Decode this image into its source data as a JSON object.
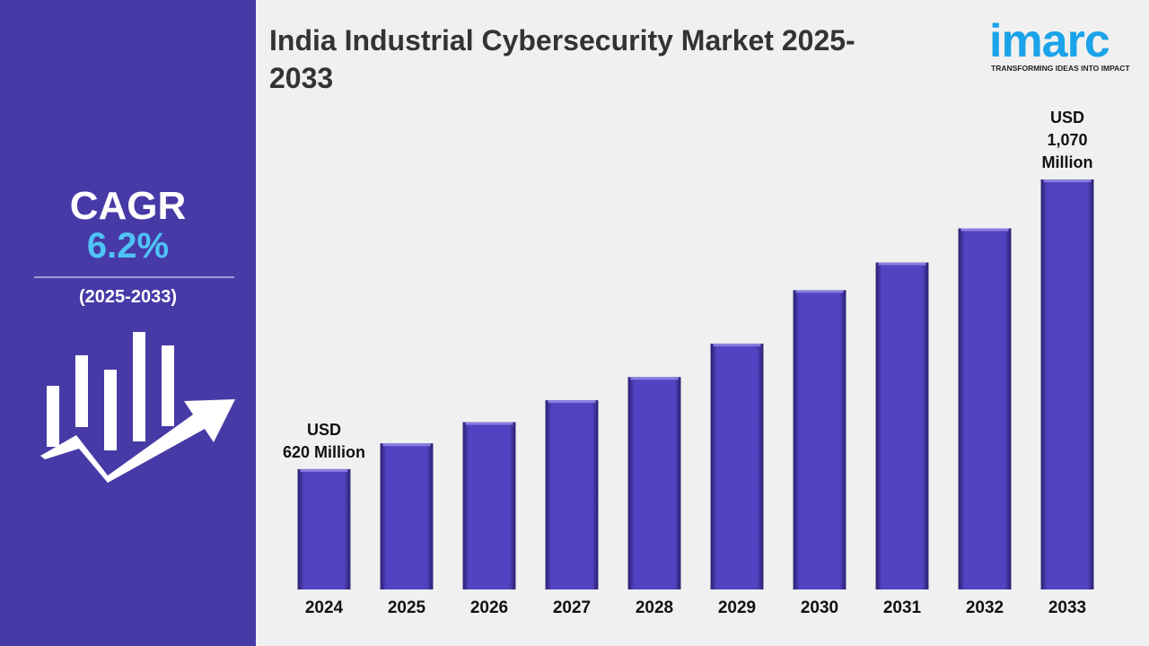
{
  "header": {
    "title": "India Industrial Cybersecurity Market 2025-2033",
    "logo": "imarc",
    "tagline": "TRANSFORMING IDEAS INTO IMPACT"
  },
  "sidebar": {
    "label": "CAGR",
    "value": "6.2%",
    "period": "(2025-2033)"
  },
  "chart_data": {
    "type": "bar",
    "categories": [
      "2024",
      "2025",
      "2026",
      "2027",
      "2028",
      "2029",
      "2030",
      "2031",
      "2032",
      "2033"
    ],
    "values": [
      620,
      660,
      693,
      727,
      763,
      815,
      898,
      941,
      994,
      1070
    ],
    "value_labels": [
      "USD\n620 Million",
      null,
      null,
      null,
      null,
      null,
      null,
      null,
      null,
      "USD\n1,070 Million"
    ],
    "color": "#5243c2",
    "ylim": [
      433,
      1070
    ]
  }
}
